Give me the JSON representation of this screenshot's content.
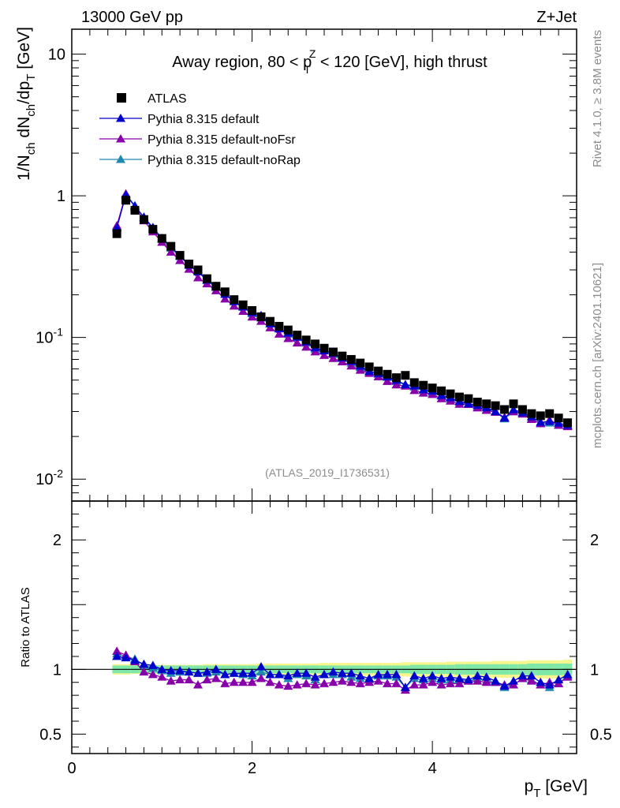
{
  "header": {
    "left": "13000 GeV pp",
    "right": "Z+Jet"
  },
  "side_texts": {
    "rivet": "Rivet 4.1.0, ≥ 3.8M events",
    "mcplots": "mcplots.cern.ch [arXiv:2401.10621]"
  },
  "chart_data": {
    "type": "scatter",
    "title": "Away region, 80 < p_T^Z < 120 [GeV], high thrust",
    "title_parts": {
      "pre": "Away region, 80 < p",
      "sub": "T",
      "sup": "Z",
      "post": " < 120 [GeV], high thrust"
    },
    "analysis_tag": "(ATLAS_2019_I1736531)",
    "xlabel": "p_T [GeV]",
    "xlabel_parts": {
      "main": "p",
      "sub": "T",
      "unit": " [GeV]"
    },
    "ylabel": "1/N_ch dN_ch/dp_T [GeV]",
    "ylabel_parts": {
      "a": "1/N",
      "a_sub": "ch",
      "b": " dN",
      "b_sub": "ch",
      "c": "/dp",
      "c_sub": "T",
      "d": " [GeV]"
    },
    "ratio_ylabel": "Ratio to ATLAS",
    "xlim": [
      0,
      5.6
    ],
    "ylim": [
      0.007,
      15
    ],
    "yscale": "log",
    "ratio_ylim": [
      0.35,
      2.3
    ],
    "x_ticks": [
      "0",
      "2",
      "4"
    ],
    "y_ticks": [
      {
        "base": "10",
        "exp": "-2",
        "value": 0.01
      },
      {
        "base": "10",
        "exp": "-1",
        "value": 0.1
      },
      {
        "base": "1",
        "exp": "",
        "value": 1
      },
      {
        "base": "10",
        "exp": "",
        "value": 10
      }
    ],
    "ratio_ticks": [
      "0.5",
      "1",
      "2"
    ],
    "ratio_tick_values": [
      0.5,
      1,
      2
    ],
    "x": [
      0.5,
      0.6,
      0.7,
      0.8,
      0.9,
      1.0,
      1.1,
      1.2,
      1.3,
      1.4,
      1.5,
      1.6,
      1.7,
      1.8,
      1.9,
      2.0,
      2.1,
      2.2,
      2.3,
      2.4,
      2.5,
      2.6,
      2.7,
      2.8,
      2.9,
      3.0,
      3.1,
      3.2,
      3.3,
      3.4,
      3.5,
      3.6,
      3.7,
      3.8,
      3.9,
      4.0,
      4.1,
      4.2,
      4.3,
      4.4,
      4.5,
      4.6,
      4.7,
      4.8,
      4.9,
      5.0,
      5.1,
      5.2,
      5.3,
      5.4,
      5.5
    ],
    "series": [
      {
        "name": "ATLAS",
        "marker": "square",
        "color": "#000000",
        "values": [
          0.54,
          0.93,
          0.79,
          0.68,
          0.58,
          0.5,
          0.44,
          0.38,
          0.33,
          0.3,
          0.26,
          0.23,
          0.21,
          0.185,
          0.17,
          0.155,
          0.14,
          0.13,
          0.12,
          0.113,
          0.104,
          0.096,
          0.09,
          0.084,
          0.079,
          0.074,
          0.07,
          0.066,
          0.062,
          0.058,
          0.055,
          0.052,
          0.054,
          0.048,
          0.046,
          0.044,
          0.042,
          0.04,
          0.038,
          0.037,
          0.035,
          0.034,
          0.033,
          0.031,
          0.034,
          0.031,
          0.029,
          0.028,
          0.029,
          0.027,
          0.025
        ]
      },
      {
        "name": "Pythia 8.315 default",
        "marker": "triangle",
        "color": "#0000cc",
        "ratio": [
          1.1,
          1.09,
          1.07,
          1.04,
          1.03,
          1.0,
          0.99,
          0.99,
          0.98,
          0.97,
          0.98,
          1.0,
          0.96,
          0.97,
          0.97,
          0.97,
          1.02,
          0.96,
          0.96,
          0.95,
          0.97,
          0.97,
          0.94,
          0.96,
          0.98,
          0.97,
          0.97,
          0.95,
          0.93,
          0.96,
          0.96,
          0.96,
          0.86,
          0.95,
          0.93,
          0.95,
          0.93,
          0.94,
          0.93,
          0.92,
          0.95,
          0.94,
          0.91,
          0.87,
          0.91,
          0.95,
          0.95,
          0.9,
          0.88,
          0.92,
          0.96
        ]
      },
      {
        "name": "Pythia 8.315 default-noFsr",
        "marker": "triangle",
        "color": "#8800aa",
        "ratio": [
          1.14,
          1.11,
          1.06,
          0.98,
          0.96,
          0.94,
          0.91,
          0.92,
          0.92,
          0.88,
          0.92,
          0.93,
          0.89,
          0.9,
          0.9,
          0.9,
          0.93,
          0.9,
          0.88,
          0.87,
          0.88,
          0.89,
          0.88,
          0.89,
          0.9,
          0.91,
          0.9,
          0.89,
          0.9,
          0.91,
          0.89,
          0.89,
          0.84,
          0.88,
          0.88,
          0.9,
          0.88,
          0.89,
          0.89,
          0.91,
          0.91,
          0.9,
          0.9,
          0.88,
          0.88,
          0.93,
          0.91,
          0.88,
          0.9,
          0.89,
          0.94
        ]
      },
      {
        "name": "Pythia 8.315 default-noRap",
        "marker": "triangle",
        "color": "#1f8ab0",
        "ratio": [
          1.12,
          1.1,
          1.08,
          1.03,
          1.01,
          0.99,
          0.97,
          0.98,
          0.98,
          0.97,
          0.97,
          0.98,
          0.96,
          0.97,
          0.96,
          0.95,
          0.98,
          0.96,
          0.96,
          0.93,
          0.96,
          0.95,
          0.92,
          0.96,
          0.96,
          0.96,
          0.94,
          0.93,
          0.92,
          0.95,
          0.95,
          0.94,
          0.86,
          0.93,
          0.92,
          0.93,
          0.92,
          0.92,
          0.92,
          0.91,
          0.93,
          0.91,
          0.9,
          0.86,
          0.88,
          0.93,
          0.92,
          0.88,
          0.86,
          0.89,
          0.95
        ]
      }
    ],
    "ratio_band": {
      "inner_color": "#7fe8a8",
      "outer_color": "#f6f68c",
      "inner_halfwidth": [
        0.03,
        0.03,
        0.03,
        0.03,
        0.03,
        0.03,
        0.03,
        0.03,
        0.03,
        0.03,
        0.03,
        0.03,
        0.03,
        0.03,
        0.03,
        0.03,
        0.03,
        0.03,
        0.03,
        0.03,
        0.03,
        0.03,
        0.03,
        0.03,
        0.03,
        0.03,
        0.03,
        0.03,
        0.03,
        0.03,
        0.03,
        0.03,
        0.03,
        0.035,
        0.035,
        0.035,
        0.035,
        0.035,
        0.04,
        0.04,
        0.04,
        0.04,
        0.04,
        0.04,
        0.04,
        0.04,
        0.045,
        0.045,
        0.045,
        0.045,
        0.045
      ],
      "outer_halfwidth": [
        0.04,
        0.04,
        0.035,
        0.035,
        0.035,
        0.035,
        0.035,
        0.035,
        0.035,
        0.035,
        0.04,
        0.04,
        0.04,
        0.04,
        0.04,
        0.04,
        0.045,
        0.045,
        0.045,
        0.045,
        0.045,
        0.045,
        0.045,
        0.05,
        0.05,
        0.05,
        0.05,
        0.05,
        0.05,
        0.05,
        0.05,
        0.05,
        0.055,
        0.055,
        0.055,
        0.055,
        0.055,
        0.06,
        0.06,
        0.06,
        0.06,
        0.06,
        0.065,
        0.065,
        0.065,
        0.065,
        0.07,
        0.07,
        0.07,
        0.07,
        0.075
      ]
    },
    "legend_position": "top-left"
  }
}
